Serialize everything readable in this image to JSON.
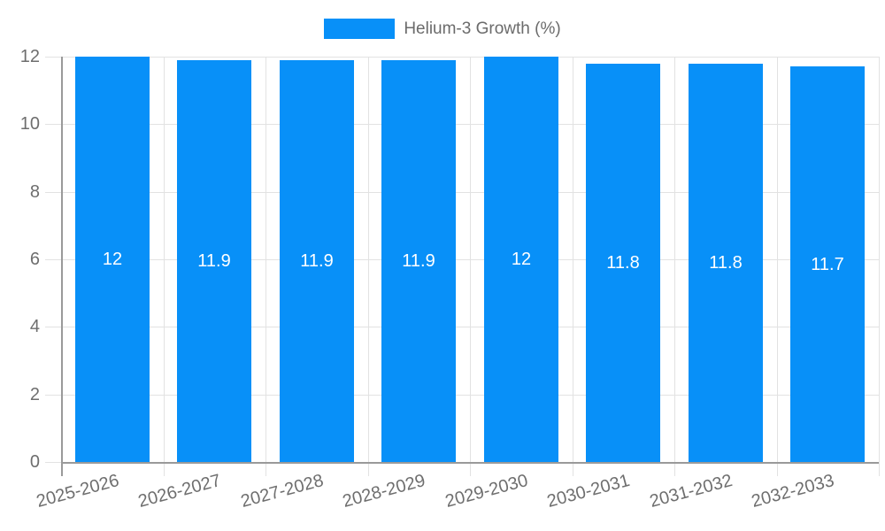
{
  "chart_data": {
    "type": "bar",
    "title": "",
    "legend": "Helium-3 Growth (%)",
    "legend_position": "top-center",
    "categories": [
      "2025-2026",
      "2026-2027",
      "2027-2028",
      "2028-2029",
      "2029-2030",
      "2030-2031",
      "2031-2032",
      "2032-2033"
    ],
    "values": [
      12,
      11.9,
      11.9,
      11.9,
      12,
      11.8,
      11.8,
      11.7
    ],
    "bar_labels": [
      "12",
      "11.9",
      "11.9",
      "11.9",
      "12",
      "11.8",
      "11.8",
      "11.7"
    ],
    "xlabel": "",
    "ylabel": "",
    "ylim": [
      0,
      12
    ],
    "yticks": [
      0,
      2,
      4,
      6,
      8,
      10,
      12
    ],
    "grid": true,
    "colors": {
      "bar": "#0890f8",
      "grid_line": "#e2e2e2",
      "axis_line": "#9a9a9a",
      "tick_text": "#6e6e6e",
      "legend_text": "#6b6b6b",
      "bar_label_text": "#ffffff",
      "background": "#ffffff"
    }
  }
}
